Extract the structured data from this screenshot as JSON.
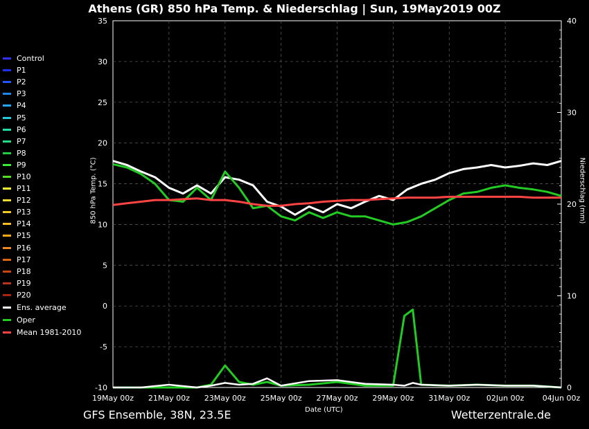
{
  "title": "Athens  (GR)  850 hPa Temp. & Niederschlag | Sun, 19May2019 00Z",
  "footer": {
    "left": "GFS Ensemble, 38N, 23.5E",
    "right": "Wetterzentrale.de"
  },
  "chart_data": {
    "type": "line",
    "title": "Athens  (GR)  850 hPa Temp. & Niederschlag | Sun, 19May2019 00Z",
    "xlabel": "Date (UTC)",
    "ylabel": "850 hPa Temp. (°C)",
    "y2label": "Niederschlag (mm)",
    "xlim": [
      0,
      16
    ],
    "ylim": [
      -10,
      35
    ],
    "y2lim": [
      0,
      40
    ],
    "x_ticks": [
      "19May 00z",
      "21May 00z",
      "23May 00z",
      "25May 00z",
      "27May 00z",
      "29May 00z",
      "31May 00z",
      "02Jun 00z",
      "04Jun 00z"
    ],
    "y_ticks": [
      "35",
      "30",
      "25",
      "20",
      "15",
      "10",
      "5",
      "0",
      "-5",
      "-10"
    ],
    "y2_ticks": [
      "40",
      "30",
      "20",
      "10",
      "0"
    ],
    "grid": true,
    "legend_placement": "left",
    "members": [
      {
        "name": "Control",
        "color": "#3333ff"
      },
      {
        "name": "P1",
        "color": "#1a33ee"
      },
      {
        "name": "P2",
        "color": "#2255ff"
      },
      {
        "name": "P3",
        "color": "#1e88ee"
      },
      {
        "name": "P4",
        "color": "#22aaff"
      },
      {
        "name": "P5",
        "color": "#22ccdd"
      },
      {
        "name": "P6",
        "color": "#22ddaa"
      },
      {
        "name": "P7",
        "color": "#22dd88"
      },
      {
        "name": "P8",
        "color": "#22cc44"
      },
      {
        "name": "P9",
        "color": "#33ee33"
      },
      {
        "name": "P10",
        "color": "#55dd22"
      },
      {
        "name": "P11",
        "color": "#ffff33"
      },
      {
        "name": "P12",
        "color": "#eedd33"
      },
      {
        "name": "P13",
        "color": "#eecc22"
      },
      {
        "name": "P14",
        "color": "#ffbb22"
      },
      {
        "name": "P15",
        "color": "#ffaa11"
      },
      {
        "name": "P16",
        "color": "#ee8822"
      },
      {
        "name": "P17",
        "color": "#dd6611"
      },
      {
        "name": "P18",
        "color": "#cc4411"
      },
      {
        "name": "P19",
        "color": "#bb3322"
      },
      {
        "name": "P20",
        "color": "#aa2211"
      }
    ],
    "special_series": [
      {
        "name": "Ens. average",
        "color": "#ffffff"
      },
      {
        "name": "Oper",
        "color": "#22cc22"
      },
      {
        "name": "Mean 1981-2010",
        "color": "#ff4444"
      }
    ],
    "series": [
      {
        "name": "Ens. average",
        "x": [
          0,
          0.5,
          1,
          1.5,
          2,
          2.5,
          3,
          3.5,
          4,
          4.5,
          5,
          5.5,
          6,
          6.5,
          7,
          7.5,
          8,
          8.5,
          9,
          9.5,
          10,
          10.5,
          11,
          11.5,
          12,
          12.5,
          13,
          13.5,
          14,
          14.5,
          15,
          15.5,
          16
        ],
        "values": [
          17.8,
          17.3,
          16.5,
          15.8,
          14.5,
          13.8,
          14.8,
          13.8,
          15.8,
          15.5,
          14.8,
          12.8,
          12.2,
          11.2,
          12.2,
          11.5,
          12.5,
          12.0,
          12.8,
          13.5,
          13.0,
          14.3,
          15.0,
          15.5,
          16.3,
          16.8,
          17.0,
          17.3,
          17.0,
          17.2,
          17.5,
          17.3,
          17.8
        ]
      },
      {
        "name": "Oper",
        "x": [
          0,
          0.5,
          1,
          1.5,
          2,
          2.5,
          3,
          3.5,
          4,
          4.5,
          5,
          5.5,
          6,
          6.5,
          7,
          7.5,
          8,
          8.5,
          9,
          9.5,
          10,
          10.5,
          11,
          11.5,
          12,
          12.5,
          13,
          13.5,
          14,
          14.5,
          15,
          15.5,
          16
        ],
        "values": [
          17.4,
          17.0,
          16.2,
          15.0,
          13.0,
          12.8,
          14.5,
          13.0,
          16.5,
          14.5,
          12.0,
          12.3,
          11.0,
          10.5,
          11.5,
          10.8,
          11.5,
          11.0,
          11.0,
          10.5,
          10.0,
          10.3,
          11.0,
          12.0,
          13.0,
          13.8,
          14.0,
          14.5,
          14.8,
          14.5,
          14.3,
          14.0,
          13.5
        ]
      },
      {
        "name": "Mean 1981-2010",
        "x": [
          0,
          0.5,
          1,
          1.5,
          2,
          2.5,
          3,
          3.5,
          4,
          4.5,
          5,
          5.5,
          6,
          6.5,
          7,
          7.5,
          8,
          8.5,
          9,
          9.5,
          10,
          10.5,
          11,
          11.5,
          12,
          12.5,
          13,
          13.5,
          14,
          14.5,
          15,
          15.5,
          16
        ],
        "values": [
          12.4,
          12.6,
          12.8,
          13.0,
          13.0,
          13.1,
          13.2,
          13.0,
          13.0,
          12.8,
          12.5,
          12.3,
          12.3,
          12.5,
          12.6,
          12.8,
          12.9,
          13.0,
          13.0,
          13.1,
          13.2,
          13.3,
          13.3,
          13.3,
          13.4,
          13.4,
          13.4,
          13.4,
          13.4,
          13.4,
          13.3,
          13.3,
          13.3
        ]
      },
      {
        "name": "Precip Oper",
        "axis": "right",
        "x": [
          0,
          1,
          2,
          3,
          3.5,
          4,
          4.5,
          5,
          5.5,
          6,
          7,
          8,
          9,
          10,
          10.4,
          10.7,
          11,
          12,
          13,
          14,
          15,
          16
        ],
        "values": [
          0,
          0,
          0,
          0,
          0.3,
          2.4,
          0.6,
          0.3,
          0.6,
          0.2,
          0.3,
          0.6,
          0.2,
          0.2,
          7.8,
          8.5,
          0.3,
          0.2,
          0.3,
          0.2,
          0.2,
          0
        ]
      },
      {
        "name": "Precip Ens. average",
        "axis": "right",
        "x": [
          0,
          1,
          2,
          3,
          3.5,
          4,
          4.5,
          5,
          5.5,
          6,
          7,
          8,
          9,
          10,
          10.4,
          10.7,
          11,
          12,
          13,
          14,
          15,
          16
        ],
        "values": [
          0,
          0,
          0.3,
          0,
          0.2,
          0.5,
          0.3,
          0.4,
          1.0,
          0.2,
          0.7,
          0.8,
          0.4,
          0.3,
          0.2,
          0.5,
          0.3,
          0.2,
          0.3,
          0.2,
          0.2,
          0
        ]
      }
    ]
  }
}
